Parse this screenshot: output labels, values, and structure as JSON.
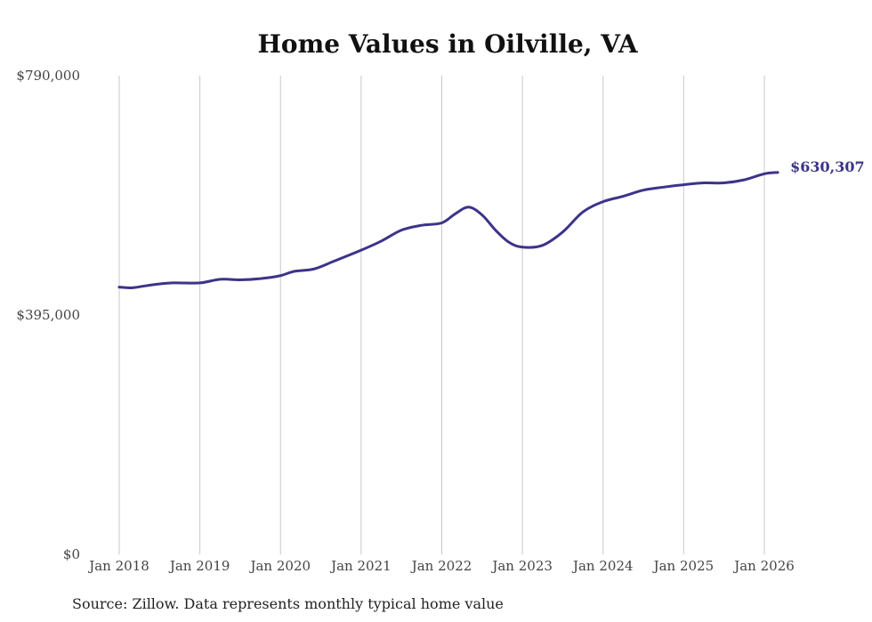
{
  "chart_data": {
    "type": "line",
    "title": "Home Values in Oilville, VA",
    "source": "Source: Zillow. Data represents monthly typical home value",
    "xlabel": "",
    "ylabel": "",
    "ylim": [
      0,
      790000
    ],
    "y_ticks": [
      "$0",
      "$395,000",
      "$790,000"
    ],
    "y_tick_values": [
      0,
      395000,
      790000
    ],
    "x_ticks": [
      "Jan 2018",
      "Jan 2019",
      "Jan 2020",
      "Jan 2021",
      "Jan 2022",
      "Jan 2023",
      "Jan 2024",
      "Jan 2025",
      "Jan 2026"
    ],
    "x_tick_values": [
      "2018-01",
      "2019-01",
      "2020-01",
      "2021-01",
      "2022-01",
      "2023-01",
      "2024-01",
      "2025-01",
      "2026-01"
    ],
    "grid": "vertical",
    "line_color": "#3b3489",
    "end_label": "$630,307",
    "series": [
      {
        "x": [
          "2018-01",
          "2018-03",
          "2018-06",
          "2018-09",
          "2019-01",
          "2019-04",
          "2019-07",
          "2019-10",
          "2020-01",
          "2020-03",
          "2020-06",
          "2020-09",
          "2021-01",
          "2021-04",
          "2021-07",
          "2021-10",
          "2022-01",
          "2022-03",
          "2022-05",
          "2022-07",
          "2022-09",
          "2022-11",
          "2023-01",
          "2023-04",
          "2023-07",
          "2023-10",
          "2024-01",
          "2024-04",
          "2024-07",
          "2024-10",
          "2025-01",
          "2025-04",
          "2025-07",
          "2025-10",
          "2026-01",
          "2026-03"
        ],
        "values": [
          441000,
          440000,
          445000,
          448000,
          448000,
          454000,
          453000,
          455000,
          460000,
          467000,
          471000,
          484000,
          502000,
          517000,
          535000,
          543000,
          547000,
          562000,
          573000,
          560000,
          535000,
          515000,
          507000,
          510000,
          532000,
          565000,
          582000,
          591000,
          601000,
          606000,
          610000,
          613000,
          613000,
          618000,
          628000,
          630307
        ]
      }
    ]
  }
}
